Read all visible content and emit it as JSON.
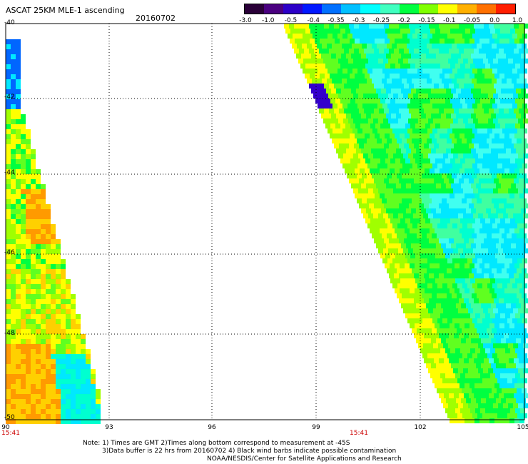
{
  "header": {
    "title": "ASCAT 25KM MLE-1 ascending",
    "date": "20160702"
  },
  "colorbar": {
    "labels": [
      "-3.0",
      "-1.0",
      "-0.5",
      "-0.4",
      "-0.35",
      "-0.3",
      "-0.25",
      "-0.2",
      "-0.15",
      "-0.1",
      "-0.05",
      "0.0",
      "1.0"
    ],
    "colors": [
      "#2a0038",
      "#4a0080",
      "#2c00c8",
      "#0018ff",
      "#0070ff",
      "#00c0ff",
      "#00ffff",
      "#40ffc0",
      "#00ff40",
      "#80ff00",
      "#ffff00",
      "#ffb000",
      "#ff7000",
      "#ff1e00"
    ]
  },
  "axes": {
    "lat_labels": [
      "-40",
      "-42",
      "-44",
      "-46",
      "-48",
      "-50"
    ],
    "lon_labels": [
      "90",
      "93",
      "96",
      "99",
      "102",
      "105"
    ]
  },
  "times": [
    "15:41",
    "15:41"
  ],
  "notes": {
    "line1": "Note: 1) Times are GMT 2)Times along bottom correspond to measurement at -45S",
    "line2": "3)Data buffer is 22 hrs from 20160702 4) Black wind barbs indicate possible contamination",
    "line3": "NOAA/NESDIS/Center for Satellite Applications and Research"
  }
}
